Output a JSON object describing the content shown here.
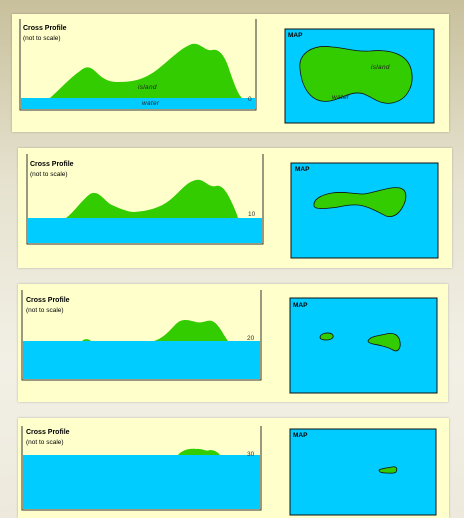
{
  "panels": [
    {
      "title": "Cross Profile",
      "subtitle": "(not to scale)",
      "map_label": "MAP",
      "level": "0",
      "island_label": "island",
      "water_label": "water",
      "map_island_label": "island",
      "map_water_label": "water"
    },
    {
      "title": "Cross Profile",
      "subtitle": "(not to scale)",
      "map_label": "MAP",
      "level": "10"
    },
    {
      "title": "Cross Profile",
      "subtitle": "(not to scale)",
      "map_label": "MAP",
      "level": "20"
    },
    {
      "title": "Cross Profile",
      "subtitle": "(not to scale)",
      "map_label": "MAP",
      "level": "30"
    }
  ],
  "colors": {
    "panel": "#ffffcc",
    "water": "#00ccff",
    "land": "#33cc00",
    "outline": "#111111"
  }
}
